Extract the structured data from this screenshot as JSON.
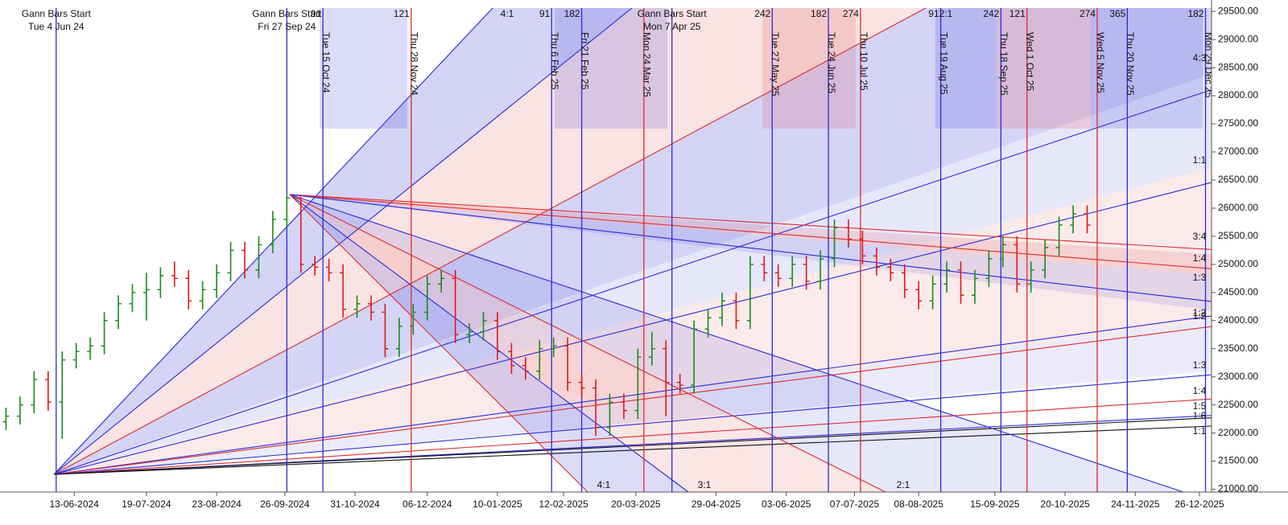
{
  "chart_data": {
    "type": "ohlc",
    "up_color": "#1a8a1a",
    "down_color": "#e01818",
    "x": [
      "10-05-2024",
      "17-05-2024",
      "24-05-2024",
      "31-05-2024",
      "07-06-2024",
      "14-06-2024",
      "21-06-2024",
      "28-06-2024",
      "05-07-2024",
      "12-07-2024",
      "19-07-2024",
      "26-07-2024",
      "02-08-2024",
      "09-08-2024",
      "16-08-2024",
      "23-08-2024",
      "30-08-2024",
      "06-09-2024",
      "13-09-2024",
      "20-09-2024",
      "27-09-2024",
      "04-10-2024",
      "11-10-2024",
      "18-10-2024",
      "25-10-2024",
      "01-11-2024",
      "08-11-2024",
      "15-11-2024",
      "22-11-2024",
      "29-11-2024",
      "06-12-2024",
      "13-12-2024",
      "20-12-2024",
      "27-12-2024",
      "03-01-2025",
      "10-01-2025",
      "17-01-2025",
      "24-01-2025",
      "31-01-2025",
      "07-02-2025",
      "14-02-2025",
      "21-02-2025",
      "28-02-2025",
      "07-03-2025",
      "14-03-2025",
      "21-03-2025",
      "28-03-2025",
      "04-04-2025",
      "11-04-2025",
      "18-04-2025",
      "25-04-2025",
      "02-05-2025",
      "09-05-2025",
      "16-05-2025",
      "23-05-2025",
      "30-05-2025",
      "06-06-2025",
      "13-06-2025",
      "20-06-2025",
      "27-06-2025",
      "04-07-2025",
      "11-07-2025",
      "18-07-2025",
      "25-07-2025",
      "01-08-2025",
      "08-08-2025",
      "15-08-2025",
      "22-08-2025",
      "29-08-2025",
      "05-09-2025",
      "12-09-2025",
      "19-09-2025",
      "26-09-2025",
      "03-10-2025",
      "10-10-2025",
      "17-10-2025",
      "24-10-2025",
      "31-10-2025"
    ],
    "open": [
      22200,
      22300,
      22500,
      22950,
      22550,
      23300,
      23450,
      23550,
      24000,
      24300,
      24500,
      24550,
      24800,
      24750,
      24350,
      24550,
      24850,
      25250,
      24900,
      25350,
      25800,
      26180,
      25000,
      24950,
      24850,
      24200,
      24300,
      24150,
      23500,
      23900,
      24150,
      24650,
      24750,
      23750,
      23800,
      24000,
      23450,
      23200,
      23100,
      23500,
      23550,
      22900,
      22800,
      22100,
      22550,
      22400,
      23350,
      23500,
      22900,
      22850,
      23850,
      24050,
      24350,
      24000,
      25000,
      24850,
      24750,
      25000,
      24700,
      25100,
      25650,
      25450,
      25150,
      24950,
      24850,
      24550,
      24350,
      24650,
      24900,
      24450,
      24750,
      25100,
      25350,
      24650,
      24900,
      25300,
      25700,
      25900
    ],
    "high": [
      22450,
      22650,
      23100,
      23100,
      23450,
      23600,
      23700,
      24150,
      24450,
      24650,
      24850,
      24950,
      25050,
      24900,
      24700,
      25000,
      25400,
      25400,
      25500,
      25950,
      26250,
      26200,
      25150,
      25100,
      25000,
      24450,
      24450,
      24300,
      24050,
      24300,
      24800,
      24900,
      24900,
      23950,
      24150,
      24150,
      23600,
      23350,
      23650,
      23700,
      23700,
      23050,
      22950,
      22700,
      22700,
      23500,
      23800,
      23650,
      23050,
      24000,
      24200,
      24500,
      24500,
      25150,
      25150,
      25000,
      25150,
      25150,
      25250,
      25800,
      25800,
      25600,
      25300,
      25100,
      25000,
      24700,
      24800,
      25050,
      25050,
      24900,
      25250,
      25500,
      25500,
      25050,
      25450,
      25850,
      26050,
      26050
    ],
    "low": [
      22050,
      22150,
      22350,
      22400,
      21900,
      23150,
      23300,
      23400,
      23850,
      24150,
      24000,
      24400,
      24600,
      24200,
      24200,
      24400,
      24700,
      24750,
      24750,
      25200,
      25650,
      24850,
      24800,
      24700,
      24050,
      24050,
      24000,
      23350,
      23350,
      23750,
      24000,
      24500,
      23600,
      23600,
      23650,
      23300,
      23050,
      22950,
      22950,
      23350,
      22750,
      22650,
      21950,
      21950,
      22250,
      22250,
      23200,
      22300,
      22700,
      22700,
      23700,
      23900,
      23850,
      23850,
      24700,
      24600,
      24600,
      24550,
      24550,
      24950,
      25300,
      25000,
      24800,
      24700,
      24400,
      24200,
      24200,
      24500,
      24300,
      24300,
      24600,
      24950,
      24500,
      24500,
      24750,
      25150,
      25550,
      25550
    ],
    "close": [
      22300,
      22500,
      22950,
      22550,
      23300,
      23450,
      23550,
      24000,
      24300,
      24500,
      24550,
      24800,
      24750,
      24350,
      24550,
      24850,
      25250,
      24900,
      25350,
      25800,
      26180,
      25000,
      24950,
      24850,
      24200,
      24300,
      24150,
      23500,
      23900,
      24150,
      24650,
      24750,
      23750,
      23800,
      24000,
      23450,
      23200,
      23100,
      23500,
      23550,
      22900,
      22800,
      22100,
      22550,
      22400,
      23350,
      23500,
      22900,
      22850,
      23850,
      24050,
      24350,
      24000,
      25000,
      24850,
      24750,
      25000,
      24700,
      25100,
      25650,
      25450,
      25150,
      24950,
      24850,
      24550,
      24350,
      24650,
      24900,
      24450,
      24750,
      25100,
      25350,
      24650,
      24900,
      25300,
      25700,
      25900,
      25700
    ],
    "xlim": [
      "07-05-2024",
      "01-01-2026"
    ],
    "xticks": [
      "13-06-2024",
      "19-07-2024",
      "23-08-2024",
      "26-09-2024",
      "31-10-2024",
      "06-12-2024",
      "10-01-2025",
      "12-02-2025",
      "20-03-2025",
      "29-04-2025",
      "03-06-2025",
      "07-07-2025",
      "08-08-2025",
      "15-09-2025",
      "20-10-2025",
      "24-11-2025",
      "26-12-2025"
    ],
    "ylim": [
      20950,
      29560
    ],
    "yticks": [
      {
        "value": 21000,
        "label": "21000.00"
      },
      {
        "value": 21500,
        "label": "21500.00"
      },
      {
        "value": 22000,
        "label": "22000.00"
      },
      {
        "value": 22500,
        "label": "22500.00"
      },
      {
        "value": 23000,
        "label": "23000.00"
      },
      {
        "value": 23500,
        "label": "23500.00"
      },
      {
        "value": 24000,
        "label": "24000.00"
      },
      {
        "value": 24500,
        "label": "24500.00"
      },
      {
        "value": 25000,
        "label": "25000.00"
      },
      {
        "value": 25500,
        "label": "25500.00"
      },
      {
        "value": 26000,
        "label": "26000.00"
      },
      {
        "value": 26500,
        "label": "26500.00"
      },
      {
        "value": 27000,
        "label": "27000.00"
      },
      {
        "value": 27500,
        "label": "27500.00"
      },
      {
        "value": 28000,
        "label": "28000.00"
      },
      {
        "value": 28500,
        "label": "28500.00"
      },
      {
        "value": 29000,
        "label": "29000.00"
      },
      {
        "value": 29500,
        "label": "29500.00"
      }
    ],
    "grid": false,
    "gann_starts": [
      {
        "label": "Gann Bars Start",
        "date": "Tue 4 Jun 24"
      },
      {
        "label": "Gann Bars Start",
        "date": "Fri 27 Sep 24"
      },
      {
        "label": "Gann Bars Start",
        "date": "Mon 7 Apr 25"
      }
    ],
    "date_lines": [
      {
        "label": "Tue 15 Oct 24",
        "count": 91,
        "color": "#2a2ae0"
      },
      {
        "label": "Thu 28 Nov 24",
        "count": 121,
        "color": "#e02a2a"
      },
      {
        "label": "Thu 6 Feb 25",
        "count": 91,
        "color": "#2a2ae0"
      },
      {
        "label": "Fri 21 Feb 25",
        "count": 182,
        "color": "#2a2ae0"
      },
      {
        "label": "Mon 24 Mar 25",
        "color": "#e02a2a"
      },
      {
        "label": "Tue 27 May 25",
        "count": 242,
        "color": "#2a2ae0"
      },
      {
        "label": "Tue 24 Jun 25",
        "count": 182,
        "color": "#2a2ae0"
      },
      {
        "label": "Thu 10 Jul 25",
        "count": 274,
        "color": "#e02a2a"
      },
      {
        "label": "Tue 19 Aug 25",
        "count": 91,
        "color": "#2a2ae0"
      },
      {
        "label": "Thu 18 Sep 25",
        "count": 242,
        "color": "#2a2ae0"
      },
      {
        "label": "Wed 1 Oct 25",
        "count": 121,
        "color": "#e02a2a"
      },
      {
        "label": "Wed 5 Nov 25",
        "count": 274,
        "color": "#e02a2a"
      },
      {
        "label": "Thu 20 Nov 25",
        "count": 365,
        "color": "#2a2ae0"
      },
      {
        "label": "Mon 29 Dec 25",
        "count": 182,
        "color": "#2a2ae0"
      }
    ],
    "fan_labels_top": [
      "4:1",
      "2:1"
    ],
    "fan_labels_bottom": [
      "4:1",
      "3:1",
      "2:1"
    ],
    "fan_labels_right": [
      "4:3",
      "1:1",
      "3:4",
      "1:4",
      "1:3",
      "1:2",
      "1:2",
      "1:3",
      "1:4",
      "1:5",
      "1:6",
      "1:1"
    ]
  }
}
